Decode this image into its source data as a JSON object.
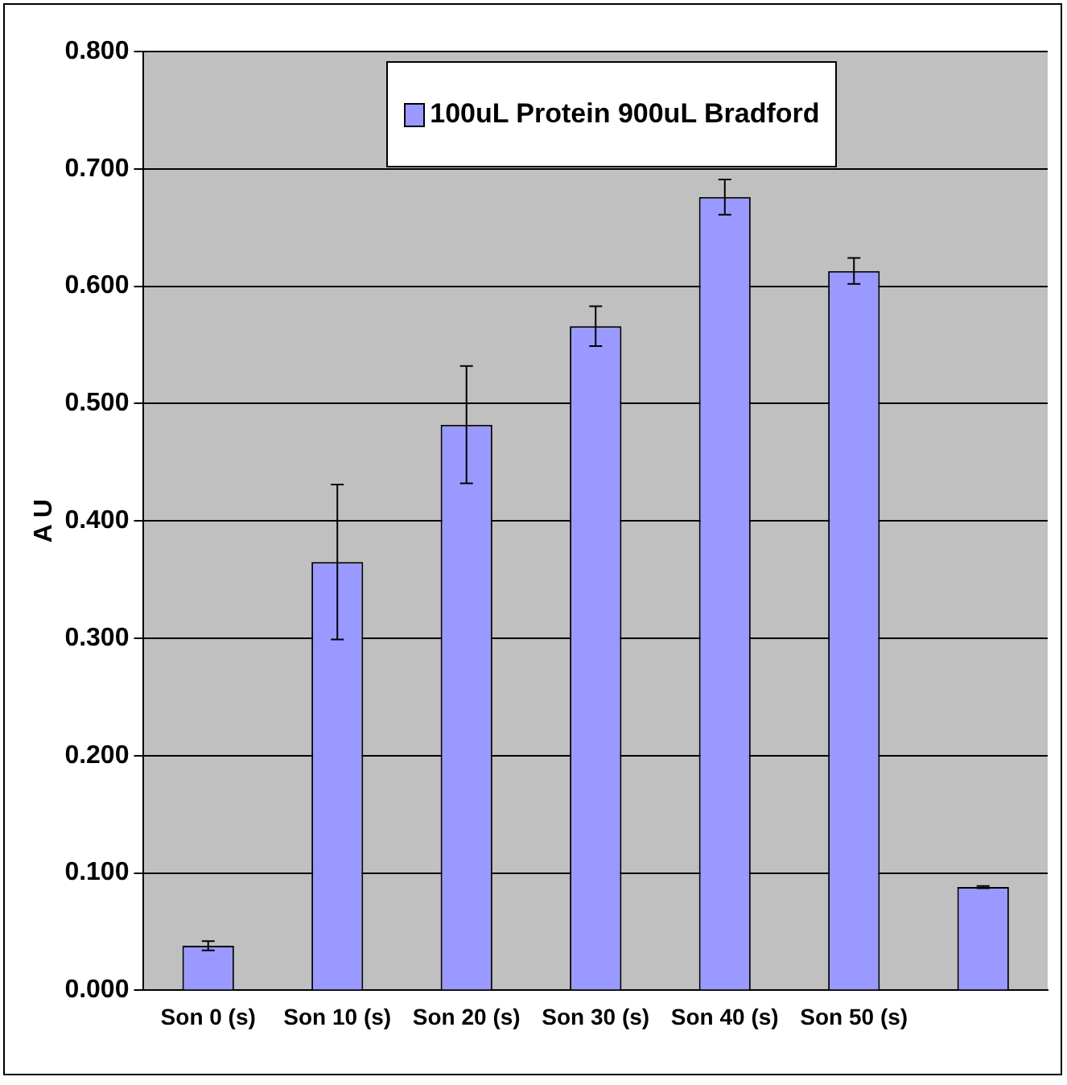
{
  "chart_data": {
    "type": "bar",
    "ylabel": "A U",
    "categories": [
      "Son 0 (s)",
      "Son 10 (s)",
      "Son 20 (s)",
      "Son 30 (s)",
      "Son 40 (s)",
      "Son 50 (s)",
      null
    ],
    "series": [
      {
        "name": "100uL Protein 900uL Bradford",
        "color": "#9999ff",
        "values": [
          0.038,
          0.365,
          0.482,
          0.566,
          0.676,
          0.613,
          0.088
        ],
        "errors": [
          0.004,
          0.066,
          0.05,
          0.017,
          0.015,
          0.011,
          0.001
        ]
      }
    ],
    "ylim": [
      0,
      0.8
    ],
    "yticks": [
      {
        "value": 0,
        "label": "0.000"
      },
      {
        "value": 0.1,
        "label": "0.100"
      },
      {
        "value": 0.2,
        "label": "0.200"
      },
      {
        "value": 0.3,
        "label": "0.300"
      },
      {
        "value": 0.4,
        "label": "0.400"
      },
      {
        "value": 0.5,
        "label": "0.500"
      },
      {
        "value": 0.6,
        "label": "0.600"
      },
      {
        "value": 0.7,
        "label": "0.700"
      },
      {
        "value": 0.8,
        "label": "0.800"
      }
    ],
    "grid": "y",
    "legend": "top"
  }
}
